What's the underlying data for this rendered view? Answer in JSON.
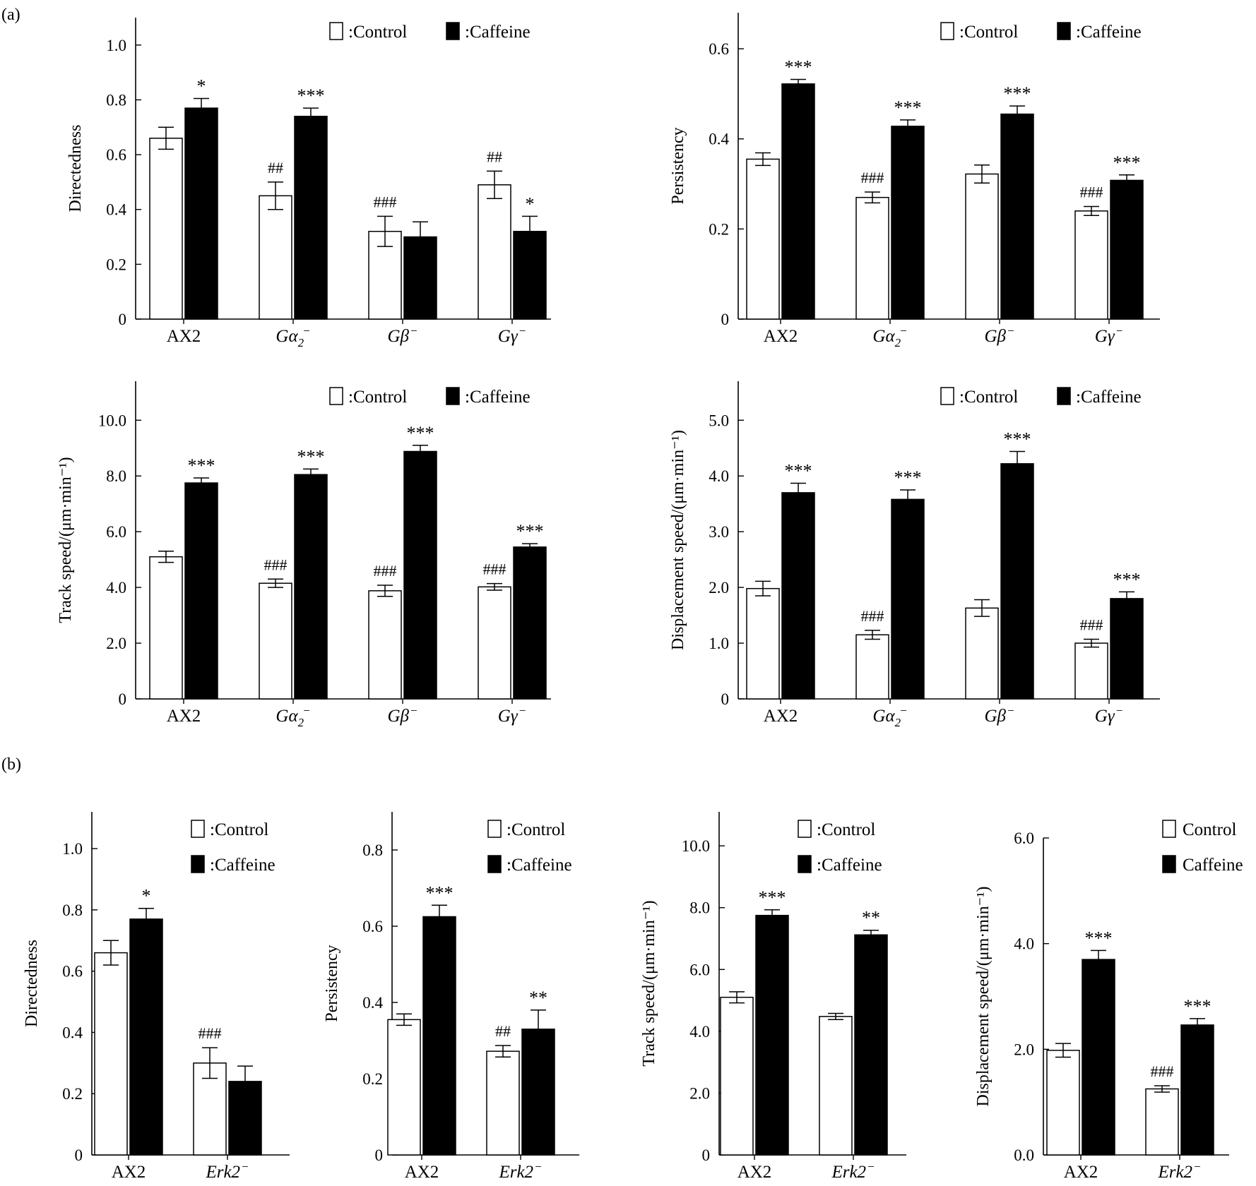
{
  "panel_labels": [
    "(a)",
    "(b)"
  ],
  "legend": {
    "control": ":Control",
    "caffeine": ":Caffeine",
    "control_plain": "Control",
    "caffeine_plain": "Caffeine"
  },
  "chart_data": [
    {
      "id": "a1",
      "type": "bar",
      "panel": "(a)",
      "ylabel": "Directedness",
      "ylim": [
        0,
        1.1
      ],
      "yticks": [
        0,
        0.2,
        0.4,
        0.6,
        0.8,
        1.0
      ],
      "yticklabels": [
        "0",
        "0.2",
        "0.4",
        "0.6",
        "0.8",
        "1.0"
      ],
      "categories": [
        {
          "base": "AX2"
        },
        {
          "base": "Gα",
          "sub": "2",
          "sup": "−",
          "italic": true
        },
        {
          "base": "Gβ",
          "sup": "−",
          "italic": true
        },
        {
          "base": "Gγ",
          "sup": "−",
          "italic": true
        }
      ],
      "series": [
        {
          "name": "Control",
          "values": [
            0.66,
            0.45,
            0.32,
            0.49
          ],
          "errors": [
            0.04,
            0.05,
            0.055,
            0.05
          ],
          "annotations": [
            "",
            "##",
            "###",
            "##"
          ]
        },
        {
          "name": "Caffeine",
          "values": [
            0.77,
            0.74,
            0.3,
            0.32
          ],
          "errors": [
            0.035,
            0.03,
            0.055,
            0.055
          ],
          "annotations": [
            "*",
            "***",
            "",
            "*"
          ]
        }
      ],
      "legend_style": "colon"
    },
    {
      "id": "a2",
      "type": "bar",
      "panel": "(a)",
      "ylabel": "Persistency",
      "ylim": [
        0,
        0.68
      ],
      "yticks": [
        0,
        0.2,
        0.4,
        0.6
      ],
      "yticklabels": [
        "0",
        "0.2",
        "0.4",
        "0.6"
      ],
      "categories": [
        {
          "base": "AX2"
        },
        {
          "base": "Gα",
          "sub": "2",
          "sup": "−",
          "italic": true
        },
        {
          "base": "Gβ",
          "sup": "−",
          "italic": true
        },
        {
          "base": "Gγ",
          "sup": "−",
          "italic": true
        }
      ],
      "series": [
        {
          "name": "Control",
          "values": [
            0.355,
            0.27,
            0.322,
            0.24
          ],
          "errors": [
            0.014,
            0.012,
            0.02,
            0.01
          ],
          "annotations": [
            "",
            "###",
            "",
            "###"
          ]
        },
        {
          "name": "Caffeine",
          "values": [
            0.522,
            0.428,
            0.455,
            0.308
          ],
          "errors": [
            0.01,
            0.014,
            0.018,
            0.012
          ],
          "annotations": [
            "***",
            "***",
            "***",
            "***"
          ]
        }
      ],
      "legend_style": "colon"
    },
    {
      "id": "a3",
      "type": "bar",
      "panel": "(a)",
      "ylabel": "Track speed/(μm·min⁻¹)",
      "ylim": [
        0,
        11.4
      ],
      "yticks": [
        0,
        2,
        4,
        6,
        8,
        10
      ],
      "yticklabels": [
        "0",
        "2.0",
        "4.0",
        "6.0",
        "8.0",
        "10.0"
      ],
      "categories": [
        {
          "base": "AX2"
        },
        {
          "base": "Gα",
          "sub": "2",
          "sup": "−",
          "italic": true
        },
        {
          "base": "Gβ",
          "sup": "−",
          "italic": true
        },
        {
          "base": "Gγ",
          "sup": "−",
          "italic": true
        }
      ],
      "series": [
        {
          "name": "Control",
          "values": [
            5.1,
            4.15,
            3.88,
            4.02
          ],
          "errors": [
            0.2,
            0.15,
            0.2,
            0.12
          ],
          "annotations": [
            "",
            "###",
            "###",
            "###"
          ]
        },
        {
          "name": "Caffeine",
          "values": [
            7.75,
            8.05,
            8.88,
            5.45
          ],
          "errors": [
            0.18,
            0.2,
            0.22,
            0.12
          ],
          "annotations": [
            "***",
            "***",
            "***",
            "***"
          ]
        }
      ],
      "legend_style": "colon"
    },
    {
      "id": "a4",
      "type": "bar",
      "panel": "(a)",
      "ylabel": "Displacement speed/(μm·min⁻¹)",
      "ylim": [
        0,
        5.7
      ],
      "yticks": [
        0,
        1,
        2,
        3,
        4,
        5
      ],
      "yticklabels": [
        "0",
        "1.0",
        "2.0",
        "3.0",
        "4.0",
        "5.0"
      ],
      "categories": [
        {
          "base": "AX2"
        },
        {
          "base": "Gα",
          "sub": "2",
          "sup": "−",
          "italic": true
        },
        {
          "base": "Gβ",
          "sup": "−",
          "italic": true
        },
        {
          "base": "Gγ",
          "sup": "−",
          "italic": true
        }
      ],
      "series": [
        {
          "name": "Control",
          "values": [
            1.98,
            1.15,
            1.63,
            1.0
          ],
          "errors": [
            0.13,
            0.08,
            0.15,
            0.07
          ],
          "annotations": [
            "",
            "###",
            "",
            "###"
          ]
        },
        {
          "name": "Caffeine",
          "values": [
            3.7,
            3.58,
            4.22,
            1.8
          ],
          "errors": [
            0.17,
            0.17,
            0.22,
            0.12
          ],
          "annotations": [
            "***",
            "***",
            "***",
            "***"
          ]
        }
      ],
      "legend_style": "colon"
    },
    {
      "id": "b1",
      "type": "bar",
      "panel": "(b)",
      "ylabel": "Directedness",
      "ylim": [
        0,
        1.12
      ],
      "yticks": [
        0,
        0.2,
        0.4,
        0.6,
        0.8,
        1.0
      ],
      "yticklabels": [
        "0",
        "0.2",
        "0.4",
        "0.6",
        "0.8",
        "1.0"
      ],
      "categories": [
        {
          "base": "AX2"
        },
        {
          "base": "Erk2",
          "sup": "−",
          "italic": true
        }
      ],
      "series": [
        {
          "name": "Control",
          "values": [
            0.66,
            0.3
          ],
          "errors": [
            0.04,
            0.05
          ],
          "annotations": [
            "",
            "###"
          ]
        },
        {
          "name": "Caffeine",
          "values": [
            0.77,
            0.24
          ],
          "errors": [
            0.035,
            0.05
          ],
          "annotations": [
            "*",
            ""
          ]
        }
      ],
      "legend_style": "colon"
    },
    {
      "id": "b2",
      "type": "bar",
      "panel": "(b)",
      "ylabel": "Persistency",
      "ylim": [
        0,
        0.9
      ],
      "yticks": [
        0,
        0.2,
        0.4,
        0.6,
        0.8
      ],
      "yticklabels": [
        "0",
        "0.2",
        "0.4",
        "0.6",
        "0.8"
      ],
      "categories": [
        {
          "base": "AX2"
        },
        {
          "base": "Erk2",
          "sup": "−",
          "italic": true
        }
      ],
      "series": [
        {
          "name": "Control",
          "values": [
            0.355,
            0.272
          ],
          "errors": [
            0.015,
            0.015
          ],
          "annotations": [
            "",
            "##"
          ]
        },
        {
          "name": "Caffeine",
          "values": [
            0.625,
            0.33
          ],
          "errors": [
            0.03,
            0.05
          ],
          "annotations": [
            "***",
            "**"
          ]
        }
      ],
      "legend_style": "colon"
    },
    {
      "id": "b3",
      "type": "bar",
      "panel": "(b)",
      "ylabel": "Track speed/(μm·min⁻¹)",
      "ylim": [
        0,
        11.1
      ],
      "yticks": [
        0,
        2,
        4,
        6,
        8,
        10
      ],
      "yticklabels": [
        "0",
        "2.0",
        "4.0",
        "6.0",
        "8.0",
        "10.0"
      ],
      "categories": [
        {
          "base": "AX2"
        },
        {
          "base": "Erk2",
          "sup": "−",
          "italic": true
        }
      ],
      "series": [
        {
          "name": "Control",
          "values": [
            5.1,
            4.48
          ],
          "errors": [
            0.18,
            0.1
          ],
          "annotations": [
            "",
            ""
          ]
        },
        {
          "name": "Caffeine",
          "values": [
            7.75,
            7.12
          ],
          "errors": [
            0.18,
            0.15
          ],
          "annotations": [
            "***",
            "**"
          ]
        }
      ],
      "legend_style": "colon"
    },
    {
      "id": "b4",
      "type": "bar",
      "panel": "(b)",
      "ylabel": "Displacement speed/(μm·min⁻¹)",
      "ylim": [
        0,
        6.0
      ],
      "yticks": [
        0,
        2,
        4,
        6
      ],
      "yticklabels": [
        "0.0",
        "2.0",
        "4.0",
        "6.0"
      ],
      "categories": [
        {
          "base": "AX2"
        },
        {
          "base": "Erk2",
          "sup": "−",
          "italic": true
        }
      ],
      "series": [
        {
          "name": "Control",
          "values": [
            1.98,
            1.25
          ],
          "errors": [
            0.13,
            0.06
          ],
          "annotations": [
            "",
            "###"
          ]
        },
        {
          "name": "Caffeine",
          "values": [
            3.7,
            2.46
          ],
          "errors": [
            0.17,
            0.12
          ],
          "annotations": [
            "***",
            "***"
          ]
        }
      ],
      "legend_style": "plain"
    }
  ]
}
